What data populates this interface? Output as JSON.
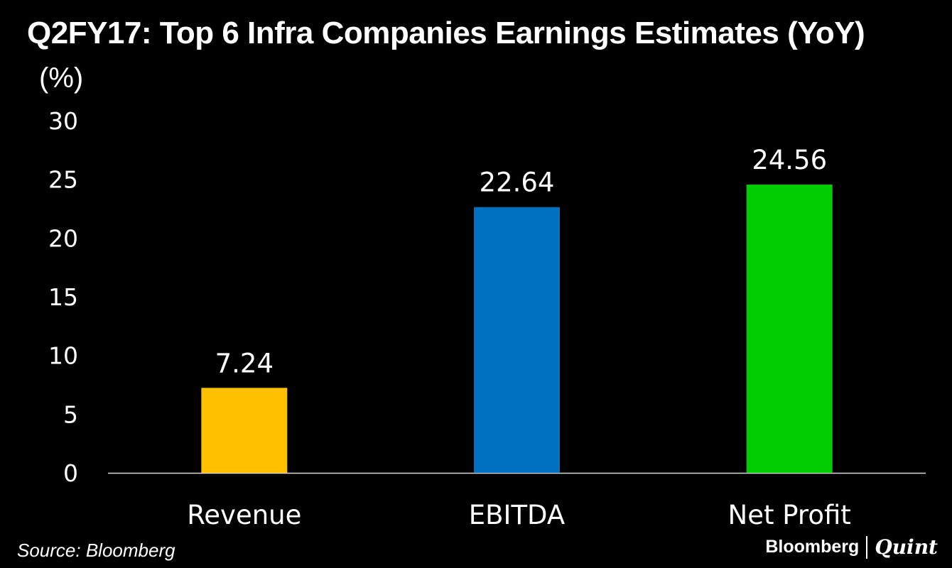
{
  "header": {
    "title": "Q2FY17: Top 6 Infra Companies Earnings Estimates (YoY)",
    "unit": "(%)"
  },
  "footer": {
    "source": "Source: Bloomberg",
    "brand_name": "Bloomberg",
    "brand_partner": "Quint"
  },
  "chart_data": {
    "type": "bar",
    "title": "Q2FY17: Top 6 Infra Companies Earnings Estimates (YoY)",
    "xlabel": "",
    "ylabel": "(%)",
    "categories": [
      "Revenue",
      "EBITDA",
      "Net Profit"
    ],
    "values": [
      7.24,
      22.64,
      24.56
    ],
    "value_labels": [
      "7.24",
      "22.64",
      "24.56"
    ],
    "colors": [
      "#FFC000",
      "#0070C0",
      "#00CC00"
    ],
    "ylim": [
      0,
      30
    ],
    "yticks": [
      0,
      5,
      10,
      15,
      20,
      25,
      30
    ],
    "grid": false,
    "legend": "none"
  }
}
